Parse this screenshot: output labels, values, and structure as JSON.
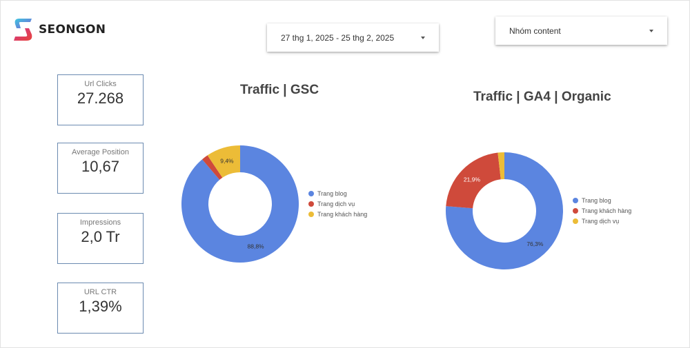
{
  "brand": {
    "name": "SEONGON"
  },
  "filters": {
    "date_range": "27 thg 1, 2025 - 25 thg 2, 2025",
    "content_group": "Nhóm content"
  },
  "kpis": [
    {
      "label": "Url Clicks",
      "value": "27.268"
    },
    {
      "label": "Average Position",
      "value": "10,67"
    },
    {
      "label": "Impressions",
      "value": "2,0 Tr"
    },
    {
      "label": "URL CTR",
      "value": "1,39%"
    }
  ],
  "colors": {
    "blue": "#5b85e0",
    "red": "#cf4a3b",
    "yellow": "#ecbc37"
  },
  "chart_data": [
    {
      "type": "pie",
      "title": "Traffic | GSC",
      "legend_position": "right",
      "categories": [
        "Trang blog",
        "Trang dịch vụ",
        "Trang khách hàng"
      ],
      "values": [
        88.8,
        1.8,
        9.4
      ],
      "data_labels": [
        "88,8%",
        "",
        "9,4%"
      ],
      "colors": [
        "#5b85e0",
        "#cf4a3b",
        "#ecbc37"
      ]
    },
    {
      "type": "pie",
      "title": "Traffic | GA4 | Organic",
      "legend_position": "right",
      "categories": [
        "Trang blog",
        "Trang khách hàng",
        "Trang dịch vụ"
      ],
      "values": [
        76.3,
        21.9,
        1.8
      ],
      "data_labels": [
        "76,3%",
        "21,9%",
        ""
      ],
      "colors": [
        "#5b85e0",
        "#cf4a3b",
        "#ecbc37"
      ]
    }
  ]
}
